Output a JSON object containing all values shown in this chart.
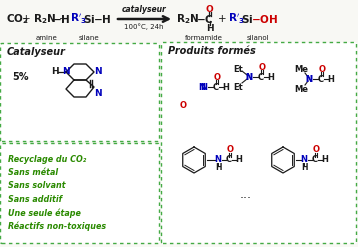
{
  "bg_color": "#f8f8f4",
  "colors": {
    "black": "#1a1a1a",
    "blue": "#0000bb",
    "red": "#cc0000",
    "green": "#2a8a00",
    "box_border": "#44aa44"
  },
  "box_left_bottom_lines": [
    "Recyclage du CO₂",
    "Sans métal",
    "Sans solvant",
    "Sans additif",
    "Une seule étape",
    "Réactifs non-toxiques"
  ]
}
